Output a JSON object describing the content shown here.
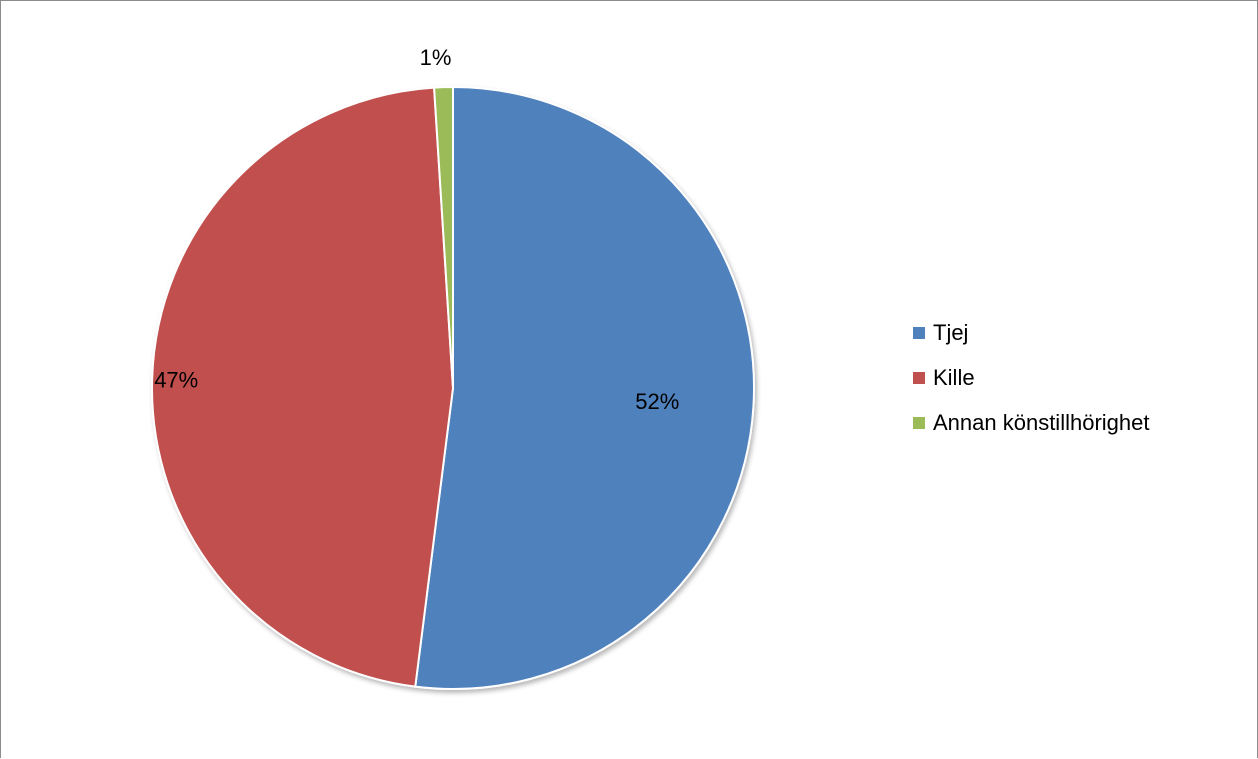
{
  "chart_data": {
    "type": "pie",
    "title": "",
    "categories": [
      "Tjej",
      "Kille",
      "Annan könstillhörighet"
    ],
    "values": [
      52,
      47,
      1
    ],
    "value_labels": [
      "52%",
      "47%",
      "1%"
    ],
    "colors": [
      "#4f81bd",
      "#c0504d",
      "#9bbb59"
    ],
    "start_angle_deg": 0,
    "direction": "clockwise",
    "legend_position": "right"
  }
}
